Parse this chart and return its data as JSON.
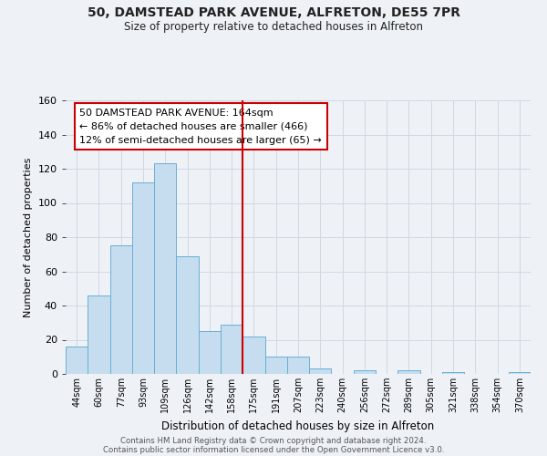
{
  "title": "50, DAMSTEAD PARK AVENUE, ALFRETON, DE55 7PR",
  "subtitle": "Size of property relative to detached houses in Alfreton",
  "xlabel": "Distribution of detached houses by size in Alfreton",
  "ylabel": "Number of detached properties",
  "bar_labels": [
    "44sqm",
    "60sqm",
    "77sqm",
    "93sqm",
    "109sqm",
    "126sqm",
    "142sqm",
    "158sqm",
    "175sqm",
    "191sqm",
    "207sqm",
    "223sqm",
    "240sqm",
    "256sqm",
    "272sqm",
    "289sqm",
    "305sqm",
    "321sqm",
    "338sqm",
    "354sqm",
    "370sqm"
  ],
  "bar_values": [
    16,
    46,
    75,
    112,
    123,
    69,
    25,
    29,
    22,
    10,
    10,
    3,
    0,
    2,
    0,
    2,
    0,
    1,
    0,
    0,
    1
  ],
  "bar_color": "#c5ddef",
  "bar_edge_color": "#6aaed6",
  "ylim": [
    0,
    160
  ],
  "yticks": [
    0,
    20,
    40,
    60,
    80,
    100,
    120,
    140,
    160
  ],
  "vline_x": 7.5,
  "vline_color": "#cc0000",
  "annotation_title": "50 DAMSTEAD PARK AVENUE: 164sqm",
  "annotation_line1": "← 86% of detached houses are smaller (466)",
  "annotation_line2": "12% of semi-detached houses are larger (65) →",
  "annotation_box_color": "#ffffff",
  "annotation_box_edge": "#cc0000",
  "footer1": "Contains HM Land Registry data © Crown copyright and database right 2024.",
  "footer2": "Contains public sector information licensed under the Open Government Licence v3.0.",
  "bg_color": "#eef2f7",
  "grid_color": "#d0d8e4"
}
